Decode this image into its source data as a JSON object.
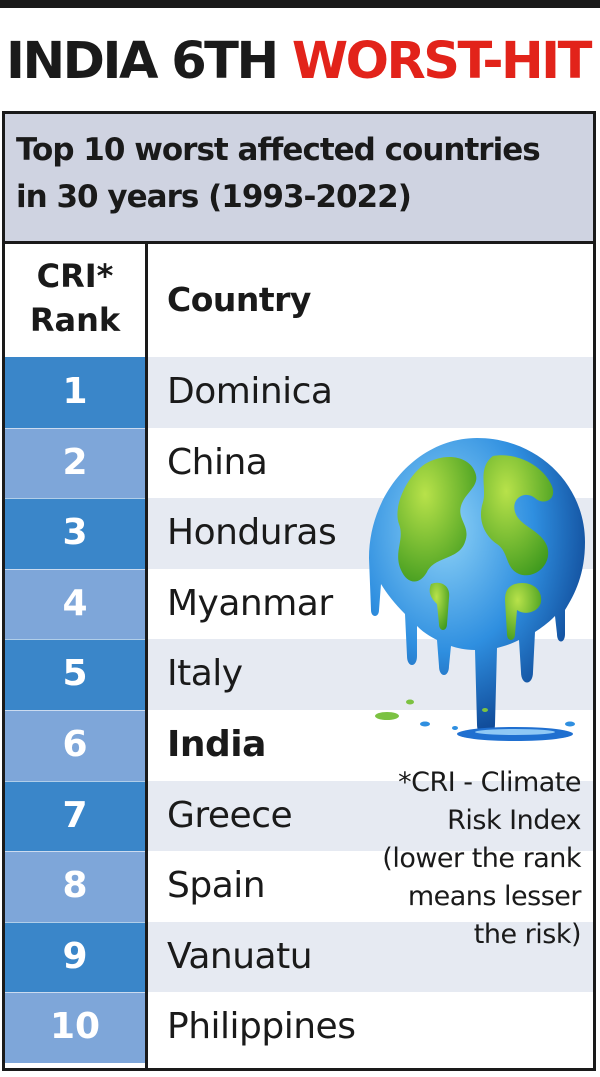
{
  "headline": {
    "part1": "INDIA 6TH",
    "part2": "WORST-HIT"
  },
  "subhead": {
    "line1": "Top 10 worst affected countries",
    "line2": "in 30 years (1993-2022)"
  },
  "chart_data": {
    "type": "table",
    "columns": [
      {
        "line1": "CRI*",
        "line2": "Rank"
      },
      {
        "label": "Country"
      }
    ],
    "rows": [
      {
        "rank": "1",
        "country": "Dominica"
      },
      {
        "rank": "2",
        "country": "China"
      },
      {
        "rank": "3",
        "country": "Honduras"
      },
      {
        "rank": "4",
        "country": "Myanmar"
      },
      {
        "rank": "5",
        "country": "Italy"
      },
      {
        "rank": "6",
        "country": "India",
        "highlight": true
      },
      {
        "rank": "7",
        "country": "Greece"
      },
      {
        "rank": "8",
        "country": "Spain"
      },
      {
        "rank": "9",
        "country": "Vanuatu"
      },
      {
        "rank": "10",
        "country": "Philippines"
      }
    ]
  },
  "footnote": {
    "lines": [
      "*CRI - Climate",
      "Risk Index",
      "(lower the rank",
      "means lesser",
      "the risk)"
    ]
  },
  "colors": {
    "headline_red": "#e2231a",
    "rank_dark": "#3a86c9",
    "rank_light": "#7ea6d9",
    "row_shade": "#e6eaf2",
    "subhead_bg": "#cfd3e1"
  },
  "illustration": {
    "icon": "melting-globe-icon"
  }
}
